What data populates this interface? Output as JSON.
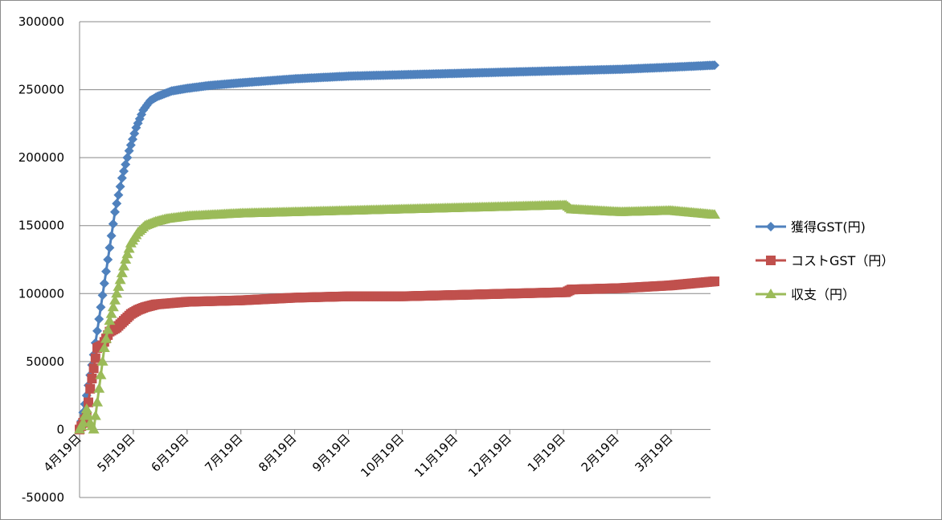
{
  "chart_data": {
    "type": "line",
    "title": "",
    "xlabel": "",
    "ylabel": "",
    "ylim": [
      -50000,
      300000
    ],
    "y_ticks": [
      -50000,
      0,
      50000,
      100000,
      150000,
      200000,
      250000,
      300000
    ],
    "y_tick_labels": [
      "-50000",
      "0",
      "50000",
      "100000",
      "150000",
      "200000",
      "250000",
      "300000"
    ],
    "x_axis_type": "date",
    "x_ticks": [
      "4月19日",
      "5月19日",
      "6月19日",
      "7月19日",
      "8月19日",
      "9月19日",
      "10月19日",
      "11月19日",
      "12月19日",
      "1月19日",
      "2月19日",
      "3月19日"
    ],
    "grid": true,
    "legend_position": "right",
    "series": [
      {
        "name": "獲得GST(円)",
        "color": "#4f81bd",
        "marker": "diamond",
        "x": [
          "4月19日",
          "4月23日",
          "4月27日",
          "5月1日",
          "5月5日",
          "5月9日",
          "5月13日",
          "5月17日",
          "5月21日",
          "5月25日",
          "5月29日",
          "6月2日",
          "6月6日",
          "6月10日",
          "6月19日",
          "7月1日",
          "7月19日",
          "8月19日",
          "9月19日",
          "10月19日",
          "11月19日",
          "12月19日",
          "1月19日",
          "2月19日",
          "3月19日",
          "4月13日"
        ],
        "values": [
          0,
          25000,
          55000,
          90000,
          125000,
          160000,
          185000,
          205000,
          222000,
          235000,
          242000,
          245000,
          247000,
          249000,
          251000,
          253000,
          255000,
          258000,
          260000,
          261000,
          262000,
          263000,
          264000,
          265000,
          266500,
          268000
        ]
      },
      {
        "name": "コストGST（円）",
        "color": "#c0504d",
        "marker": "square",
        "x": [
          "4月19日",
          "4月21日",
          "4月23日",
          "4月25日",
          "4月27日",
          "4月29日",
          "5月2日",
          "5月6日",
          "5月10日",
          "5月14日",
          "5月18日",
          "5月22日",
          "5月26日",
          "6月1日",
          "6月10日",
          "6月19日",
          "7月19日",
          "8月19日",
          "9月19日",
          "10月19日",
          "11月19日",
          "12月19日",
          "1月19日",
          "1月22日",
          "2月19日",
          "3月19日",
          "4月13日"
        ],
        "values": [
          0,
          5000,
          10000,
          30000,
          45000,
          60000,
          62000,
          72000,
          75000,
          80000,
          85000,
          88000,
          90000,
          92000,
          93000,
          94000,
          95000,
          97000,
          98000,
          98000,
          99000,
          100000,
          101000,
          103000,
          104000,
          106000,
          109000
        ]
      },
      {
        "name": "収支（円）",
        "color": "#9bbb59",
        "marker": "triangle",
        "x": [
          "4月19日",
          "4月21日",
          "4月23日",
          "4月25日",
          "4月27日",
          "4月29日",
          "5月1日",
          "5月3日",
          "5月6日",
          "5月9日",
          "5月12日",
          "5月15日",
          "5月18日",
          "5月22日",
          "5月26日",
          "6月1日",
          "6月7日",
          "6月19日",
          "7月19日",
          "8月19日",
          "9月19日",
          "10月19日",
          "11月19日",
          "12月19日",
          "1月19日",
          "1月22日",
          "2月19日",
          "3月19日",
          "4月13日"
        ],
        "values": [
          0,
          5000,
          15000,
          5000,
          0,
          20000,
          40000,
          60000,
          80000,
          95000,
          110000,
          125000,
          137000,
          145000,
          150000,
          153000,
          155000,
          157000,
          159000,
          160000,
          161000,
          162000,
          163000,
          164000,
          165000,
          162000,
          160000,
          161000,
          158000
        ]
      }
    ]
  }
}
